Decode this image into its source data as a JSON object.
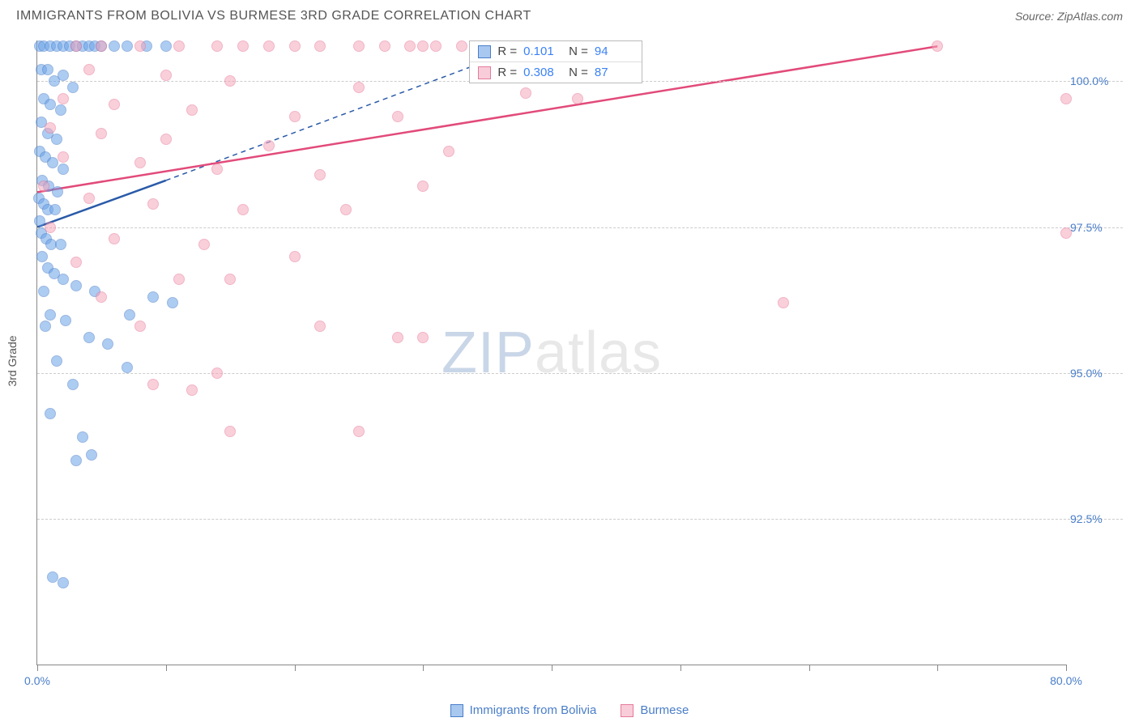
{
  "title": "IMMIGRANTS FROM BOLIVIA VS BURMESE 3RD GRADE CORRELATION CHART",
  "source": "Source: ZipAtlas.com",
  "watermark": {
    "part1": "ZIP",
    "part2": "atlas"
  },
  "chart": {
    "type": "scatter",
    "ylabel": "3rd Grade",
    "xlim": [
      0,
      80
    ],
    "ylim": [
      90,
      100.7
    ],
    "xticks": [
      0,
      10,
      20,
      30,
      40,
      50,
      60,
      70,
      80
    ],
    "xtick_labels_shown": {
      "0": "0.0%",
      "80": "80.0%"
    },
    "yticks": [
      92.5,
      95.0,
      97.5,
      100.0
    ],
    "ytick_labels": [
      "92.5%",
      "95.0%",
      "97.5%",
      "100.0%"
    ],
    "background_color": "#ffffff",
    "grid_color": "#cccccc",
    "axis_color": "#888888",
    "text_color": "#555555",
    "tick_label_color": "#4a7ec9",
    "title_fontsize": 16,
    "label_fontsize": 14,
    "marker_radius": 7,
    "marker_opacity": 0.55,
    "series": [
      {
        "name": "Immigrants from Bolivia",
        "fill_color": "#6aa3e8",
        "stroke_color": "#4a7ec9",
        "line_color": "#2a5aa8",
        "R": "0.101",
        "N": "94",
        "regression": {
          "x1": 0,
          "y1": 97.5,
          "x2": 10,
          "y2": 98.3,
          "dashed_x2": 38,
          "dashed_y2": 100.6
        },
        "points": [
          [
            0.2,
            100.6
          ],
          [
            0.5,
            100.6
          ],
          [
            1.0,
            100.6
          ],
          [
            1.5,
            100.6
          ],
          [
            2.0,
            100.6
          ],
          [
            2.5,
            100.6
          ],
          [
            3.0,
            100.6
          ],
          [
            3.5,
            100.6
          ],
          [
            4.0,
            100.6
          ],
          [
            4.5,
            100.6
          ],
          [
            5.0,
            100.6
          ],
          [
            6.0,
            100.6
          ],
          [
            7.0,
            100.6
          ],
          [
            8.5,
            100.6
          ],
          [
            10,
            100.6
          ],
          [
            0.3,
            100.2
          ],
          [
            0.8,
            100.2
          ],
          [
            1.3,
            100.0
          ],
          [
            2.0,
            100.1
          ],
          [
            2.8,
            99.9
          ],
          [
            0.5,
            99.7
          ],
          [
            1.0,
            99.6
          ],
          [
            1.8,
            99.5
          ],
          [
            0.3,
            99.3
          ],
          [
            0.8,
            99.1
          ],
          [
            1.5,
            99.0
          ],
          [
            0.2,
            98.8
          ],
          [
            0.6,
            98.7
          ],
          [
            1.2,
            98.6
          ],
          [
            2.0,
            98.5
          ],
          [
            0.4,
            98.3
          ],
          [
            0.9,
            98.2
          ],
          [
            1.6,
            98.1
          ],
          [
            0.1,
            98.0
          ],
          [
            0.5,
            97.9
          ],
          [
            0.8,
            97.8
          ],
          [
            1.4,
            97.8
          ],
          [
            0.2,
            97.6
          ],
          [
            0.3,
            97.4
          ],
          [
            0.7,
            97.3
          ],
          [
            1.1,
            97.2
          ],
          [
            1.8,
            97.2
          ],
          [
            0.4,
            97.0
          ],
          [
            0.8,
            96.8
          ],
          [
            1.3,
            96.7
          ],
          [
            2.0,
            96.6
          ],
          [
            0.5,
            96.4
          ],
          [
            3.0,
            96.5
          ],
          [
            4.5,
            96.4
          ],
          [
            7.2,
            96.0
          ],
          [
            9.0,
            96.3
          ],
          [
            10.5,
            96.2
          ],
          [
            1.0,
            96.0
          ],
          [
            2.2,
            95.9
          ],
          [
            0.6,
            95.8
          ],
          [
            4.0,
            95.6
          ],
          [
            5.5,
            95.5
          ],
          [
            7.0,
            95.1
          ],
          [
            1.5,
            95.2
          ],
          [
            2.8,
            94.8
          ],
          [
            1.0,
            94.3
          ],
          [
            3.5,
            93.9
          ],
          [
            4.2,
            93.6
          ],
          [
            3.0,
            93.5
          ],
          [
            1.2,
            91.5
          ],
          [
            2.0,
            91.4
          ]
        ]
      },
      {
        "name": "Burmese",
        "fill_color": "#f5a8bd",
        "stroke_color": "#e67a9a",
        "line_color": "#e24a7a",
        "R": "0.308",
        "N": "87",
        "regression": {
          "x1": 0,
          "y1": 98.1,
          "x2": 70,
          "y2": 100.6
        },
        "points": [
          [
            3,
            100.6
          ],
          [
            5,
            100.6
          ],
          [
            8,
            100.6
          ],
          [
            11,
            100.6
          ],
          [
            14,
            100.6
          ],
          [
            16,
            100.6
          ],
          [
            18,
            100.6
          ],
          [
            20,
            100.6
          ],
          [
            22,
            100.6
          ],
          [
            25,
            100.6
          ],
          [
            27,
            100.6
          ],
          [
            29,
            100.6
          ],
          [
            30,
            100.6
          ],
          [
            31,
            100.6
          ],
          [
            33,
            100.6
          ],
          [
            34,
            100.6
          ],
          [
            36,
            100.6
          ],
          [
            40,
            100.6
          ],
          [
            70,
            100.6
          ],
          [
            4,
            100.2
          ],
          [
            10,
            100.1
          ],
          [
            15,
            100.0
          ],
          [
            25,
            99.9
          ],
          [
            38,
            99.8
          ],
          [
            42,
            99.7
          ],
          [
            2,
            99.7
          ],
          [
            6,
            99.6
          ],
          [
            12,
            99.5
          ],
          [
            20,
            99.4
          ],
          [
            28,
            99.4
          ],
          [
            80,
            99.7
          ],
          [
            1,
            99.2
          ],
          [
            5,
            99.1
          ],
          [
            10,
            99.0
          ],
          [
            18,
            98.9
          ],
          [
            32,
            98.8
          ],
          [
            2,
            98.7
          ],
          [
            8,
            98.6
          ],
          [
            14,
            98.5
          ],
          [
            22,
            98.4
          ],
          [
            30,
            98.2
          ],
          [
            0.5,
            98.2
          ],
          [
            4,
            98.0
          ],
          [
            9,
            97.9
          ],
          [
            16,
            97.8
          ],
          [
            24,
            97.8
          ],
          [
            1,
            97.5
          ],
          [
            6,
            97.3
          ],
          [
            13,
            97.2
          ],
          [
            20,
            97.0
          ],
          [
            80,
            97.4
          ],
          [
            3,
            96.9
          ],
          [
            11,
            96.6
          ],
          [
            15,
            96.6
          ],
          [
            5,
            96.3
          ],
          [
            22,
            95.8
          ],
          [
            58,
            96.2
          ],
          [
            8,
            95.8
          ],
          [
            14,
            95.0
          ],
          [
            9,
            94.8
          ],
          [
            28,
            95.6
          ],
          [
            30,
            95.6
          ],
          [
            12,
            94.7
          ],
          [
            25,
            94.0
          ],
          [
            15,
            94.0
          ]
        ]
      }
    ],
    "legend_bottom": [
      {
        "label": "Immigrants from Bolivia",
        "fill": "#a8c8f0",
        "stroke": "#4a7ec9"
      },
      {
        "label": "Burmese",
        "fill": "#f8cdd9",
        "stroke": "#e67a9a"
      }
    ],
    "stat_box": {
      "left_pct": 42,
      "top_pct": 0,
      "rows": [
        {
          "swatch_fill": "#a8c8f0",
          "swatch_stroke": "#4a7ec9",
          "r_label": "R =",
          "r_val": "0.101",
          "n_label": "N =",
          "n_val": "94"
        },
        {
          "swatch_fill": "#f8cdd9",
          "swatch_stroke": "#e67a9a",
          "r_label": "R =",
          "r_val": "0.308",
          "n_label": "N =",
          "n_val": "87"
        }
      ]
    }
  }
}
